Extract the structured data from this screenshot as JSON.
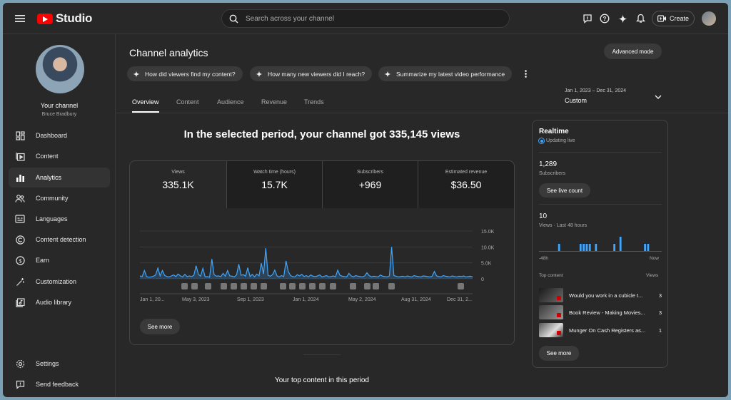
{
  "header": {
    "logo_text": "Studio",
    "search_placeholder": "Search across your channel",
    "create_label": "Create"
  },
  "sidebar": {
    "channel_title": "Your channel",
    "channel_name": "Bruce Bradbury",
    "items": [
      {
        "label": "Dashboard",
        "icon": "dashboard-icon"
      },
      {
        "label": "Content",
        "icon": "content-icon"
      },
      {
        "label": "Analytics",
        "icon": "analytics-icon",
        "active": true
      },
      {
        "label": "Community",
        "icon": "community-icon"
      },
      {
        "label": "Languages",
        "icon": "languages-icon"
      },
      {
        "label": "Content detection",
        "icon": "copyright-icon"
      },
      {
        "label": "Earn",
        "icon": "earn-icon"
      },
      {
        "label": "Customization",
        "icon": "customization-icon"
      },
      {
        "label": "Audio library",
        "icon": "audio-library-icon"
      }
    ],
    "bottom": [
      {
        "label": "Settings",
        "icon": "gear-icon"
      },
      {
        "label": "Send feedback",
        "icon": "feedback-icon"
      }
    ]
  },
  "page": {
    "title": "Channel analytics",
    "advanced_mode": "Advanced mode",
    "chips": [
      "How did viewers find my content?",
      "How many new viewers did I reach?",
      "Summarize my latest video performance"
    ],
    "tabs": [
      "Overview",
      "Content",
      "Audience",
      "Revenue",
      "Trends"
    ],
    "date_range": "Jan 1, 2023 – Dec 31, 2024",
    "date_preset": "Custom",
    "headline": "In the selected period, your channel got 335,145 views",
    "metrics": [
      {
        "label": "Views",
        "value": "335.1K"
      },
      {
        "label": "Watch time (hours)",
        "value": "15.7K"
      },
      {
        "label": "Subscribers",
        "value": "+969"
      },
      {
        "label": "Estimated revenue",
        "value": "$36.50"
      }
    ],
    "see_more": "See more",
    "top_content_heading": "Your top content in this period"
  },
  "chart_data": {
    "type": "area",
    "series": [
      {
        "values": [
          900,
          700,
          2600,
          700,
          500,
          600,
          800,
          1200,
          3400,
          900,
          2600,
          1100,
          700,
          600,
          900,
          1200,
          700,
          1500,
          900,
          600,
          1400,
          700,
          900,
          700,
          1100,
          4100,
          1400,
          800,
          3300,
          600,
          700,
          500,
          6200,
          1300,
          800,
          900,
          700,
          1700,
          800,
          2600,
          900,
          800,
          600,
          1200,
          4600,
          1100,
          1300,
          800,
          3500,
          700,
          1400,
          600,
          1500,
          900,
          4900,
          1500,
          9600,
          1100,
          800,
          1300,
          2700,
          900,
          600,
          1000,
          700,
          5600,
          2300,
          1000,
          700,
          600,
          1300,
          900,
          1400,
          700,
          1000,
          600,
          1200,
          800,
          700,
          900,
          1200,
          600,
          800,
          1000,
          600,
          700,
          900,
          600,
          2700,
          1100,
          800,
          700,
          600,
          1700,
          900,
          600,
          1000,
          800,
          700,
          600,
          900,
          1900,
          1000,
          600,
          800,
          700,
          600,
          1200,
          800,
          700,
          600,
          900,
          10000,
          1000,
          800,
          600,
          700,
          800,
          600,
          900,
          700,
          600,
          1000,
          800,
          700,
          600,
          900,
          800,
          700,
          600,
          800,
          2300,
          900,
          700,
          600,
          1000,
          800,
          700,
          600,
          900,
          700,
          600,
          800,
          700,
          900,
          600,
          700,
          800,
          600
        ]
      }
    ],
    "x_tick_labels": [
      "Jan 1, 20...",
      "May 3, 2023",
      "Sep 1, 2023",
      "Jan 1, 2024",
      "May 2, 2024",
      "Aug 31, 2024",
      "Dec 31, 2..."
    ],
    "y_tick_labels": [
      "15.0K",
      "10.0K",
      "5.0K",
      "0"
    ],
    "ylim": [
      0,
      15000
    ],
    "color": "#3ea6ff"
  },
  "realtime": {
    "title": "Realtime",
    "status": "Updating live",
    "subscribers": "1,289",
    "subscribers_label": "Subscribers",
    "see_live": "See live count",
    "views": "10",
    "views_label": "Views · Last 48 hours",
    "bars": [
      0,
      0,
      0,
      0,
      0,
      0,
      1,
      0,
      0,
      0,
      0,
      0,
      0,
      1,
      1,
      1,
      1,
      0,
      1,
      0,
      0,
      0,
      0,
      0,
      1,
      0,
      1,
      0,
      0,
      0,
      0,
      0,
      0,
      0,
      1,
      1,
      0,
      0,
      0,
      0
    ],
    "axis_left": "-48h",
    "axis_right": "Now",
    "top_content_label": "Top content",
    "top_views_label": "Views",
    "rows": [
      {
        "title": "Would you work in a cubicle t...",
        "views": "3"
      },
      {
        "title": "Book Review - Making Movies...",
        "views": "3"
      },
      {
        "title": "Munger On Cash Registers as...",
        "views": "1"
      }
    ],
    "see_more": "See more"
  }
}
